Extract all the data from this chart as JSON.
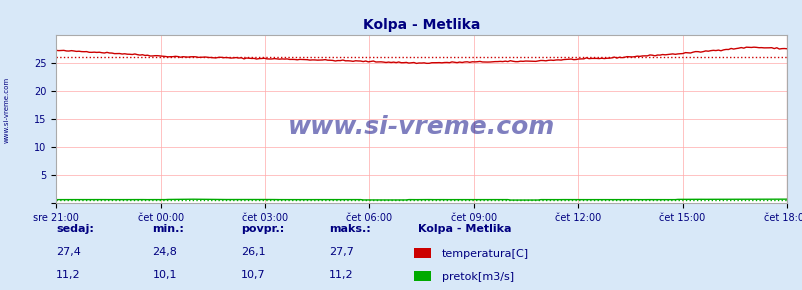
{
  "title": "Kolpa - Metlika",
  "title_color": "#000080",
  "bg_color": "#d8e8f8",
  "plot_bg_color": "#ffffff",
  "grid_color": "#ffaaaa",
  "xlabel_color": "#000080",
  "x_labels": [
    "sre 21:00",
    "čet 00:00",
    "čet 03:00",
    "čet 06:00",
    "čet 09:00",
    "čet 12:00",
    "čet 15:00",
    "čet 18:00"
  ],
  "y_ticks": [
    0,
    5,
    10,
    15,
    20,
    25
  ],
  "ylim": [
    0,
    30
  ],
  "temp_color": "#cc0000",
  "flow_color": "#00aa00",
  "temp_avg": 26.1,
  "flow_avg": 10.7,
  "temp_min": 24.8,
  "temp_max": 27.7,
  "flow_min": 10.1,
  "flow_max": 11.2,
  "temp_current": 27.4,
  "flow_current": 11.2,
  "watermark": "www.si-vreme.com",
  "watermark_color": "#000080",
  "left_label": "www.si-vreme.com",
  "legend_title": "Kolpa - Metlika",
  "legend_items": [
    "temperatura[C]",
    "pretok[m3/s]"
  ],
  "legend_colors": [
    "#cc0000",
    "#00aa00"
  ],
  "info_labels": [
    "sedaj:",
    "min.:",
    "povpr.:",
    "maks.:"
  ],
  "info_color": "#000080",
  "n_points": 289
}
